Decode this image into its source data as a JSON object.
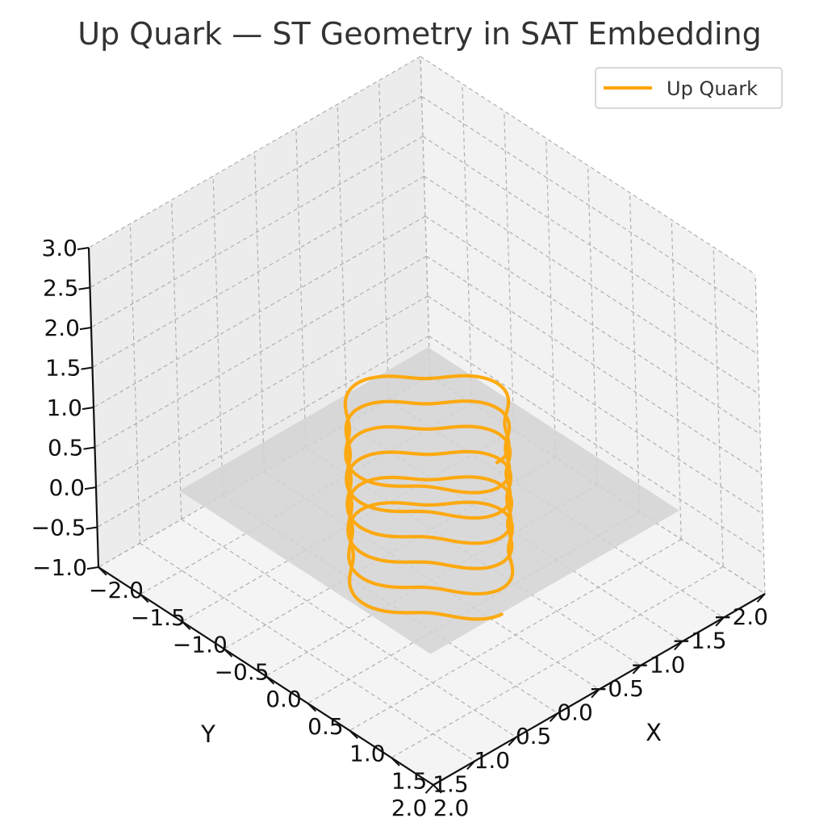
{
  "chart_data": {
    "type": "line",
    "projection": "3d",
    "title": "Up Quark — ST Geometry in SAT Embedding",
    "xlabel": "X",
    "ylabel": "Y",
    "zlabel": "",
    "xlim": [
      -2.0,
      2.0
    ],
    "ylim": [
      -2.0,
      2.0
    ],
    "zlim": [
      -1.0,
      3.0
    ],
    "xticks": [
      "−2.0",
      "−1.5",
      "−1.0",
      "−0.5",
      "0.0",
      "0.5",
      "1.0",
      "1.5",
      "2.0"
    ],
    "yticks": [
      "−2.0",
      "−1.5",
      "−1.0",
      "−0.5",
      "0.0",
      "0.5",
      "1.0",
      "1.5",
      "2.0"
    ],
    "zticks": [
      "−1.0",
      "−0.5",
      "0.0",
      "0.5",
      "1.0",
      "1.5",
      "2.0",
      "2.5",
      "3.0"
    ],
    "grid": true,
    "legend_position": "top-right",
    "plane": {
      "z": 0.0,
      "x_range": [
        -1.5,
        1.5
      ],
      "y_range": [
        -1.5,
        1.5
      ],
      "color": "#d3d3d3"
    },
    "series": [
      {
        "name": "Up Quark",
        "color": "#FFA500",
        "curve": {
          "turns": 6,
          "z_start": -0.85,
          "z_end": 1.05,
          "radius": 0.75,
          "ripple": 0.12,
          "ripple_lobes": 4
        }
      }
    ]
  }
}
